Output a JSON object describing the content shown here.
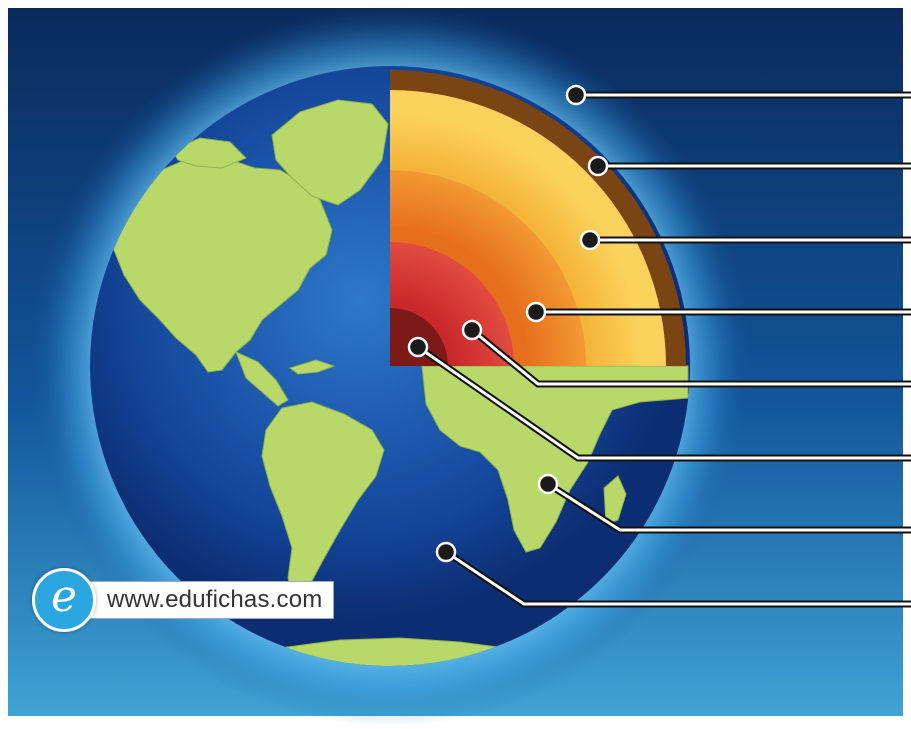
{
  "diagram": {
    "subject": "Earth cutaway",
    "layers": [
      {
        "name": "layer-atmosphere",
        "color": "#0b2f66"
      },
      {
        "name": "layer-crust",
        "color": "#7a4512"
      },
      {
        "name": "layer-upper-mantle",
        "color": "#f6c24a"
      },
      {
        "name": "layer-lower-mantle",
        "color": "#ee8a26"
      },
      {
        "name": "layer-outer-core",
        "color": "#d93a30"
      },
      {
        "name": "layer-inner-core",
        "color": "#7c1a18"
      },
      {
        "name": "layer-continents",
        "color": "#b9d86a"
      },
      {
        "name": "layer-ocean",
        "color": "#12429a"
      }
    ],
    "pointer_count": 8
  },
  "branding": {
    "logo_letter": "e",
    "url": "www.edufichas.com",
    "accent_color": "#2aa7e0"
  }
}
